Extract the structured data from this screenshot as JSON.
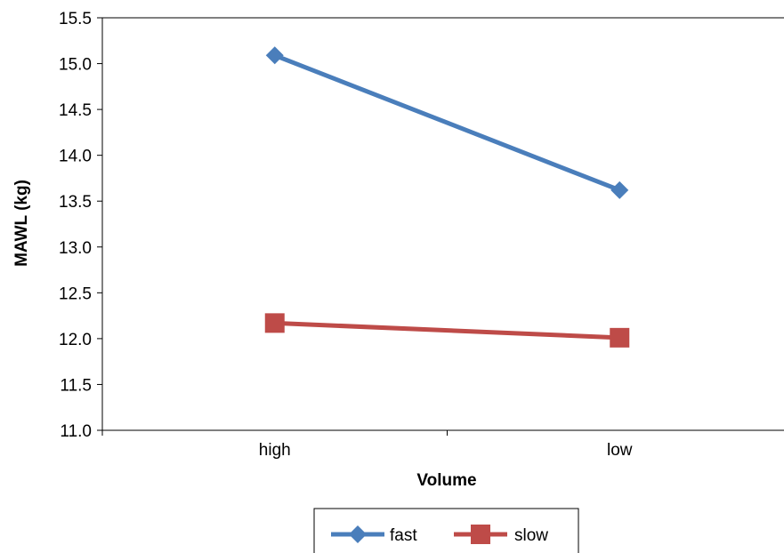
{
  "chart_data": {
    "type": "line",
    "title": "",
    "xlabel": "Volume",
    "ylabel": "MAWL (kg)",
    "categories": [
      "high",
      "low"
    ],
    "ylim": [
      11.0,
      15.5
    ],
    "yticks": [
      "11.0",
      "11.5",
      "12.0",
      "12.5",
      "13.0",
      "13.5",
      "14.0",
      "14.5",
      "15.0",
      "15.5"
    ],
    "grid": false,
    "legend_position": "bottom",
    "series": [
      {
        "name": "fast",
        "values": [
          15.09,
          13.62
        ],
        "color": "#4a7ebb",
        "marker": "diamond"
      },
      {
        "name": "slow",
        "values": [
          12.17,
          12.01
        ],
        "color": "#be4b48",
        "marker": "square"
      }
    ]
  }
}
